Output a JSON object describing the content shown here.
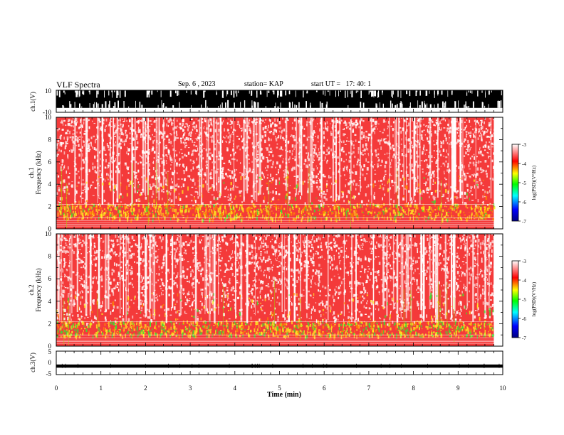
{
  "header": {
    "title": "VLF Spectra",
    "date": "Sep. 6 , 2023",
    "station": "station= KAP",
    "start_ut": "start UT =   17: 40: 1"
  },
  "colors": {
    "waveform": "#000000",
    "background": "#ffffff",
    "colorbar_stops": [
      "#000080",
      "#0000ff",
      "#00ffff",
      "#00ff00",
      "#ffff00",
      "#ff0000",
      "#ffffff"
    ]
  },
  "chart_data": [
    {
      "type": "line",
      "panel": "ch1-waveform",
      "ylabel": "ch.1(V)",
      "ylim": [
        -10,
        10
      ],
      "yticks": [
        "10",
        "-10"
      ],
      "xlim": [
        0,
        10
      ],
      "description_values": {
        "fill_extent_V": [
          -6,
          10
        ]
      }
    },
    {
      "type": "heatmap",
      "panel": "ch1-spectrogram",
      "ylabel": "ch.1\nFrequency (kHz)",
      "ylabel_lines": [
        "ch.1",
        "Frequency (kHz)"
      ],
      "ylim": [
        0,
        10
      ],
      "yticks": [
        "0",
        "2",
        "4",
        "6",
        "8",
        "10"
      ],
      "xlim": [
        0,
        9.8
      ],
      "colorbar": {
        "label": "log(PSD)(V²/Hz)",
        "range": [
          -7,
          -3
        ],
        "ticks": [
          "-3",
          "-4",
          "-5",
          "-6",
          "-7"
        ]
      }
    },
    {
      "type": "heatmap",
      "panel": "ch2-spectrogram",
      "ylabel": "ch.2\nFrequency (kHz)",
      "ylabel_lines": [
        "ch.2",
        "Frequency (kHz)"
      ],
      "ylim": [
        0,
        10
      ],
      "yticks": [
        "0",
        "2",
        "4",
        "6",
        "8",
        "10"
      ],
      "xlim": [
        0,
        9.8
      ],
      "colorbar": {
        "label": "log(PSD)(V²/Hz)",
        "range": [
          -7,
          -3
        ],
        "ticks": [
          "-3",
          "-4",
          "-5",
          "-6",
          "-7"
        ]
      }
    },
    {
      "type": "line",
      "panel": "ch3-waveform",
      "ylabel": "ch.3(V)",
      "ylim": [
        -5,
        5
      ],
      "yticks": [
        "5",
        "0",
        "-5"
      ],
      "xlim": [
        0,
        10
      ],
      "description_values": {
        "level_V": -1.3
      }
    }
  ],
  "xaxis": {
    "label": "Time (min)",
    "ticks": [
      "0",
      "1",
      "2",
      "3",
      "4",
      "5",
      "6",
      "7",
      "8",
      "9",
      "10"
    ],
    "range": [
      0,
      10
    ]
  }
}
